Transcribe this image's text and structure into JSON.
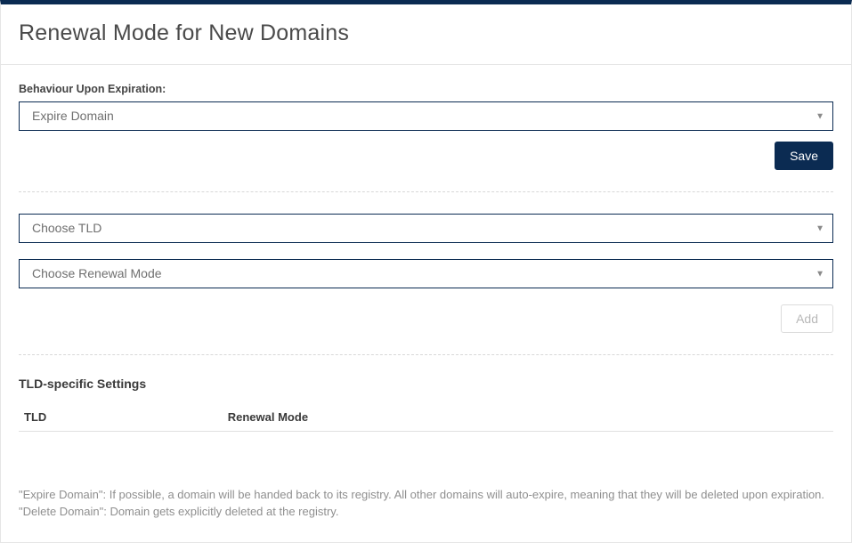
{
  "header": {
    "title": "Renewal Mode for New Domains"
  },
  "behaviour": {
    "label": "Behaviour Upon Expiration:",
    "selected": "Expire Domain",
    "save_label": "Save"
  },
  "tld_form": {
    "tld_placeholder": "Choose TLD",
    "mode_placeholder": "Choose Renewal Mode",
    "add_label": "Add"
  },
  "settings": {
    "title": "TLD-specific Settings",
    "columns": {
      "tld": "TLD",
      "mode": "Renewal Mode"
    }
  },
  "help": "\"Expire Domain\": If possible, a domain will be handed back to its registry. All other domains will auto-expire, meaning that they will be deleted upon expiration. \"Delete Domain\": Domain gets explicitly deleted at the registry.",
  "colors": {
    "accent": "#0b2b52",
    "border": "#e5e5e5",
    "text_muted": "#8f8f8f"
  }
}
